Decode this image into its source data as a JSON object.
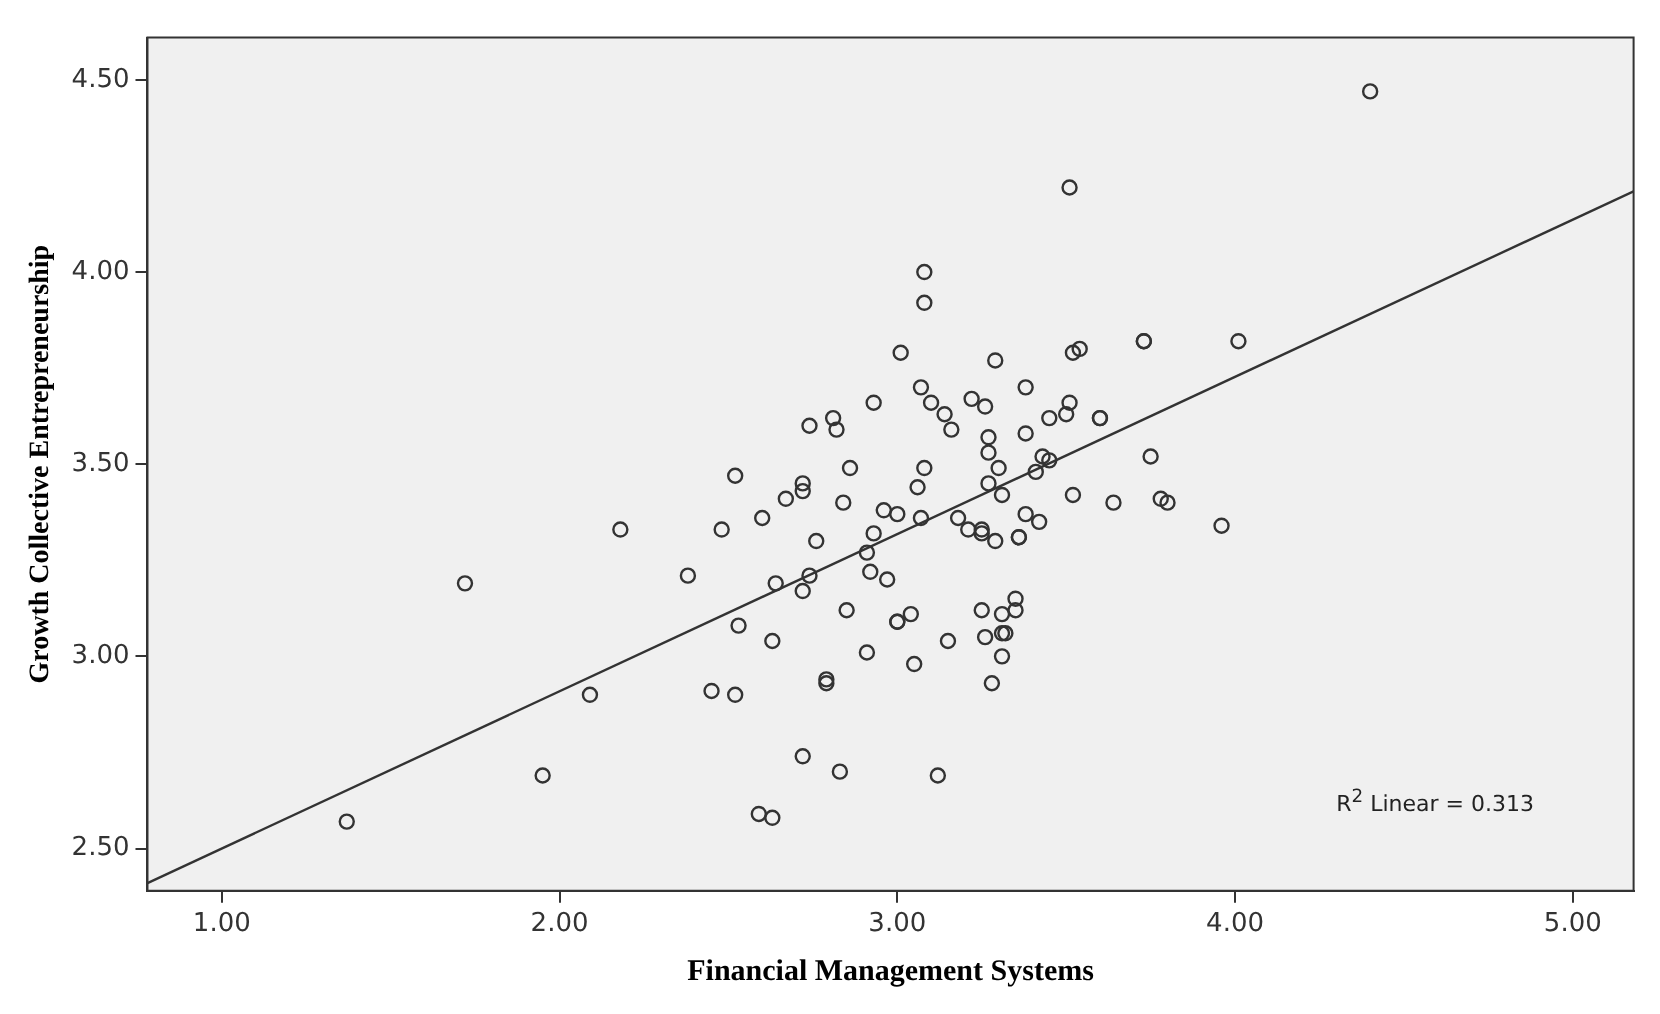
{
  "chart_data": {
    "type": "scatter",
    "xlabel": "Financial Management Systems",
    "ylabel": "Growth Collective Entrepreneurship",
    "xlim": [
      0.78,
      5.18
    ],
    "ylim": [
      2.39,
      4.61
    ],
    "xticks": [
      {
        "value": 1,
        "label": "1.00"
      },
      {
        "value": 2,
        "label": "2.00"
      },
      {
        "value": 3,
        "label": "3.00"
      },
      {
        "value": 4,
        "label": "4.00"
      },
      {
        "value": 5,
        "label": "5.00"
      }
    ],
    "yticks": [
      {
        "value": 2.5,
        "label": "2.50"
      },
      {
        "value": 3,
        "label": "3.00"
      },
      {
        "value": 3.5,
        "label": "3.50"
      },
      {
        "value": 4,
        "label": "4.00"
      },
      {
        "value": 4.5,
        "label": "4.50"
      }
    ],
    "grid": false,
    "legend": false,
    "annotations": [
      "R$^{2}$ Linear = 0.313"
    ],
    "series": [
      {
        "type": "scatter",
        "color": "#333333",
        "marker": "circle",
        "x": [
          4.4,
          3.51,
          3.08,
          3.08,
          3.73,
          3.73,
          4.01,
          3.54,
          3.52,
          3.01,
          3.29,
          3.38,
          3.07,
          2.93,
          3.22,
          3.1,
          3.26,
          3.51,
          3.14,
          3.5,
          3.45,
          3.6,
          3.6,
          2.81,
          2.74,
          2.82,
          3.16,
          3.38,
          3.27,
          3.27,
          3.75,
          3.43,
          3.45,
          3.41,
          2.86,
          3.08,
          3.3,
          2.52,
          2.72,
          2.72,
          3.27,
          3.06,
          3.31,
          3.52,
          2.67,
          3.78,
          3.8,
          2.84,
          3.64,
          2.96,
          3.0,
          3.38,
          2.6,
          3.07,
          3.18,
          3.42,
          2.18,
          2.48,
          3.96,
          3.21,
          3.25,
          3.25,
          3.36,
          3.36,
          2.93,
          3.29,
          2.76,
          2.91,
          2.38,
          2.74,
          2.92,
          2.97,
          1.72,
          2.64,
          2.72,
          3.35,
          3.35,
          3.25,
          2.85,
          3.04,
          3.31,
          3.0,
          3.0,
          3.31,
          3.32,
          2.53,
          3.26,
          2.63,
          3.15,
          2.91,
          3.31,
          3.05,
          2.79,
          2.79,
          3.28,
          2.45,
          2.09,
          2.52,
          2.72,
          1.95,
          2.83,
          3.12,
          2.59,
          2.63,
          1.37
        ],
        "values": [
          4.47,
          4.22,
          4.0,
          3.92,
          3.82,
          3.82,
          3.82,
          3.8,
          3.79,
          3.79,
          3.77,
          3.7,
          3.7,
          3.66,
          3.67,
          3.66,
          3.65,
          3.66,
          3.63,
          3.63,
          3.62,
          3.62,
          3.62,
          3.62,
          3.6,
          3.59,
          3.59,
          3.58,
          3.57,
          3.53,
          3.52,
          3.52,
          3.51,
          3.48,
          3.49,
          3.49,
          3.49,
          3.47,
          3.45,
          3.43,
          3.45,
          3.44,
          3.42,
          3.42,
          3.41,
          3.41,
          3.4,
          3.4,
          3.4,
          3.38,
          3.37,
          3.37,
          3.36,
          3.36,
          3.36,
          3.35,
          3.33,
          3.33,
          3.34,
          3.33,
          3.32,
          3.33,
          3.31,
          3.31,
          3.32,
          3.3,
          3.3,
          3.27,
          3.21,
          3.21,
          3.22,
          3.2,
          3.19,
          3.19,
          3.17,
          3.15,
          3.12,
          3.12,
          3.12,
          3.11,
          3.11,
          3.09,
          3.09,
          3.06,
          3.06,
          3.08,
          3.05,
          3.04,
          3.04,
          3.01,
          3.0,
          2.98,
          2.94,
          2.93,
          2.93,
          2.91,
          2.9,
          2.9,
          2.74,
          2.69,
          2.7,
          2.69,
          2.59,
          2.58,
          2.57
        ]
      },
      {
        "type": "line",
        "color": "#333333",
        "marker": "none",
        "line_style": "solid",
        "x": [
          0.78,
          5.18
        ],
        "values": [
          2.41,
          4.21
        ]
      }
    ]
  }
}
